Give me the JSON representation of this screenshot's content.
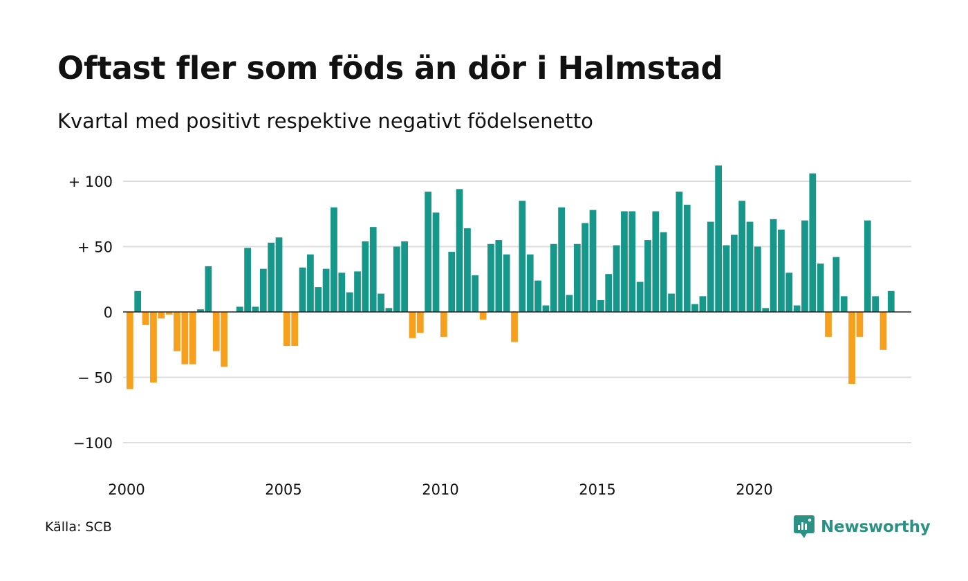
{
  "header": {
    "title": "Oftast fler som föds än dör i Halmstad",
    "subtitle": "Kvartal med positivt respektive negativt födelsenetto"
  },
  "footer": {
    "source": "Källa: SCB",
    "brand": "Newsworthy",
    "brand_icon": "newsworthy-logo-icon"
  },
  "colors": {
    "positive": "#17968a",
    "negative": "#f6a01e",
    "grid": "#dddddd",
    "zero_line": "#222222",
    "brand": "#2a9184"
  },
  "chart_data": {
    "type": "bar",
    "title": "Oftast fler som föds än dör i Halmstad",
    "subtitle": "Kvartal med positivt respektive negativt födelsenetto",
    "xlabel": "",
    "ylabel": "",
    "ylim": [
      -115,
      120
    ],
    "xlim": [
      2000,
      2024.75
    ],
    "grid": true,
    "legend": "none",
    "y_ticks": [
      {
        "value": 100,
        "label": "+ 100"
      },
      {
        "value": 50,
        "label": "+  50"
      },
      {
        "value": 0,
        "label": "0"
      },
      {
        "value": -50,
        "label": "− 50"
      },
      {
        "value": -100,
        "label": "−100"
      }
    ],
    "x_ticks": [
      {
        "value": 2000,
        "label": "2000"
      },
      {
        "value": 2005,
        "label": "2005"
      },
      {
        "value": 2010,
        "label": "2010"
      },
      {
        "value": 2015,
        "label": "2015"
      },
      {
        "value": 2020,
        "label": "2020"
      }
    ],
    "x": [
      2000.0,
      2000.25,
      2000.5,
      2000.75,
      2001.0,
      2001.25,
      2001.5,
      2001.75,
      2002.0,
      2002.25,
      2002.5,
      2002.75,
      2003.0,
      2003.25,
      2003.5,
      2003.75,
      2004.0,
      2004.25,
      2004.5,
      2004.75,
      2005.0,
      2005.25,
      2005.5,
      2005.75,
      2006.0,
      2006.25,
      2006.5,
      2006.75,
      2007.0,
      2007.25,
      2007.5,
      2007.75,
      2008.0,
      2008.25,
      2008.5,
      2008.75,
      2009.0,
      2009.25,
      2009.5,
      2009.75,
      2010.0,
      2010.25,
      2010.5,
      2010.75,
      2011.0,
      2011.25,
      2011.5,
      2011.75,
      2012.0,
      2012.25,
      2012.5,
      2012.75,
      2013.0,
      2013.25,
      2013.5,
      2013.75,
      2014.0,
      2014.25,
      2014.5,
      2014.75,
      2015.0,
      2015.25,
      2015.5,
      2015.75,
      2016.0,
      2016.25,
      2016.5,
      2016.75,
      2017.0,
      2017.25,
      2017.5,
      2017.75,
      2018.0,
      2018.25,
      2018.5,
      2018.75,
      2019.0,
      2019.25,
      2019.5,
      2019.75,
      2020.0,
      2020.25,
      2020.5,
      2020.75,
      2021.0,
      2021.25,
      2021.5,
      2021.75,
      2022.0,
      2022.25,
      2022.5,
      2022.75,
      2023.0,
      2023.25,
      2023.5,
      2023.75,
      2024.0,
      2024.25,
      2024.5
    ],
    "values": [
      -59,
      16,
      -10,
      -54,
      -5,
      -2,
      -30,
      -40,
      -40,
      2,
      35,
      -30,
      -42,
      0,
      4,
      49,
      4,
      33,
      53,
      57,
      -26,
      -26,
      34,
      44,
      19,
      33,
      80,
      30,
      15,
      31,
      54,
      65,
      14,
      3,
      50,
      54,
      -20,
      -16,
      92,
      76,
      -19,
      46,
      94,
      64,
      28,
      -6,
      52,
      55,
      44,
      -23,
      85,
      44,
      24,
      5,
      52,
      80,
      13,
      52,
      68,
      78,
      9,
      29,
      51,
      77,
      77,
      23,
      55,
      77,
      61,
      14,
      92,
      82,
      6,
      12,
      69,
      112,
      51,
      59,
      85,
      69,
      50,
      3,
      71,
      63,
      30,
      5,
      70,
      106,
      37,
      -19,
      42,
      12,
      -55,
      -19,
      70,
      12,
      -29,
      16,
      0
    ]
  }
}
